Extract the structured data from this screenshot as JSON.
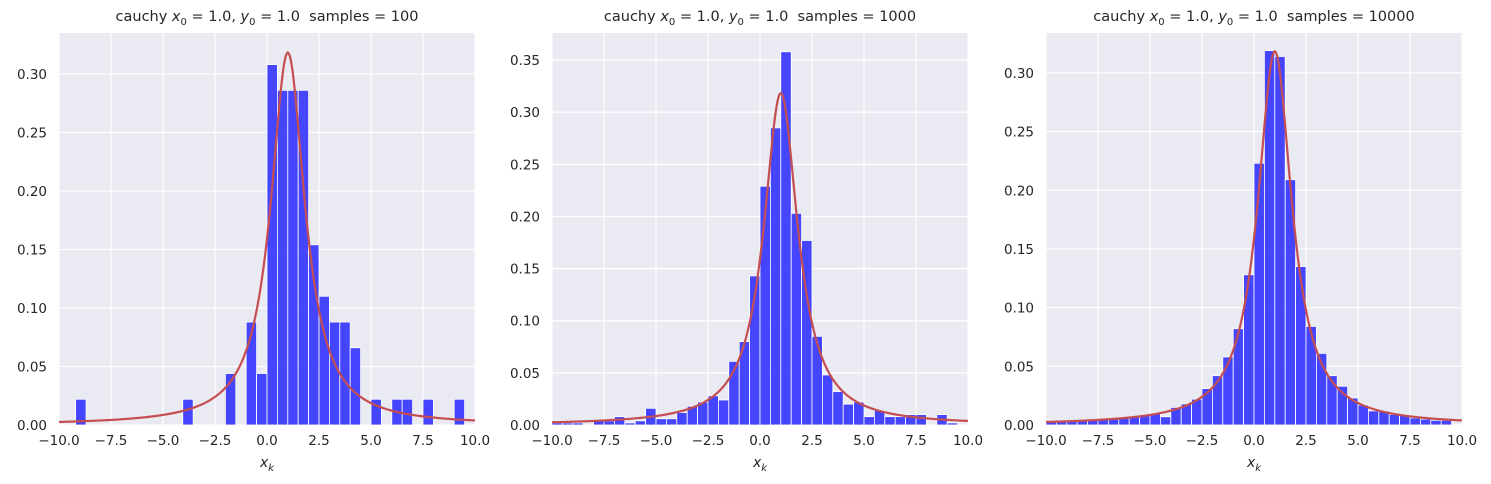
{
  "chart_data": [
    {
      "type": "bar",
      "title": "cauchy x₀ = 1.0, y₀ = 1.0  samples = 100",
      "xlabel": "xₖ",
      "xlim": [
        -10,
        10
      ],
      "ylim": [
        0,
        0.335
      ],
      "yticks": [
        0.0,
        0.05,
        0.1,
        0.15,
        0.2,
        0.25,
        0.3
      ],
      "ytick_labels": [
        "0.00",
        "0.05",
        "0.10",
        "0.15",
        "0.20",
        "0.25",
        "0.30"
      ],
      "xticks": [
        -10,
        -7.5,
        -5,
        -2.5,
        0,
        2.5,
        5,
        7.5,
        10
      ],
      "xtick_labels": [
        "−10.0",
        "−7.5",
        "−5.0",
        "−2.5",
        "0.0",
        "2.5",
        "5.0",
        "7.5",
        "10.0"
      ],
      "bin_width": 0.5,
      "bars": [
        {
          "x": -8.95,
          "y": 0.022
        },
        {
          "x": -3.8,
          "y": 0.022
        },
        {
          "x": -1.75,
          "y": 0.044
        },
        {
          "x": -0.75,
          "y": 0.088
        },
        {
          "x": -0.25,
          "y": 0.044
        },
        {
          "x": 0.25,
          "y": 0.308
        },
        {
          "x": 0.75,
          "y": 0.286
        },
        {
          "x": 1.25,
          "y": 0.286
        },
        {
          "x": 1.75,
          "y": 0.286
        },
        {
          "x": 2.25,
          "y": 0.154
        },
        {
          "x": 2.75,
          "y": 0.11
        },
        {
          "x": 3.25,
          "y": 0.088
        },
        {
          "x": 3.75,
          "y": 0.088
        },
        {
          "x": 4.25,
          "y": 0.066
        },
        {
          "x": 5.25,
          "y": 0.022
        },
        {
          "x": 6.25,
          "y": 0.022
        },
        {
          "x": 6.75,
          "y": 0.022
        },
        {
          "x": 7.75,
          "y": 0.022
        },
        {
          "x": 9.25,
          "y": 0.022
        }
      ],
      "curve": {
        "type": "cauchy_pdf",
        "x0": 1.0,
        "gamma": 1.0
      }
    },
    {
      "type": "bar",
      "title": "cauchy x₀ = 1.0, y₀ = 1.0  samples = 1000",
      "xlabel": "xₖ",
      "xlim": [
        -10,
        10
      ],
      "ylim": [
        0,
        0.376
      ],
      "yticks": [
        0.0,
        0.05,
        0.1,
        0.15,
        0.2,
        0.25,
        0.3,
        0.35
      ],
      "ytick_labels": [
        "0.00",
        "0.05",
        "0.10",
        "0.15",
        "0.20",
        "0.25",
        "0.30",
        "0.35"
      ],
      "xticks": [
        -10,
        -7.5,
        -5,
        -2.5,
        0,
        2.5,
        5,
        7.5,
        10
      ],
      "xtick_labels": [
        "−10.0",
        "−7.5",
        "−5.0",
        "−2.5",
        "0.0",
        "2.5",
        "5.0",
        "7.5",
        "10.0"
      ],
      "bin_width": 0.5,
      "bars": [
        {
          "x": -9.75,
          "y": 0.002
        },
        {
          "x": -9.25,
          "y": 0.002
        },
        {
          "x": -8.75,
          "y": 0.002
        },
        {
          "x": -7.75,
          "y": 0.004
        },
        {
          "x": -7.25,
          "y": 0.004
        },
        {
          "x": -6.75,
          "y": 0.008
        },
        {
          "x": -6.25,
          "y": 0.002
        },
        {
          "x": -5.75,
          "y": 0.004
        },
        {
          "x": -5.25,
          "y": 0.016
        },
        {
          "x": -4.75,
          "y": 0.006
        },
        {
          "x": -4.25,
          "y": 0.006
        },
        {
          "x": -3.75,
          "y": 0.012
        },
        {
          "x": -3.25,
          "y": 0.018
        },
        {
          "x": -2.75,
          "y": 0.022
        },
        {
          "x": -2.25,
          "y": 0.028
        },
        {
          "x": -1.75,
          "y": 0.024
        },
        {
          "x": -1.25,
          "y": 0.061
        },
        {
          "x": -0.75,
          "y": 0.08
        },
        {
          "x": -0.25,
          "y": 0.143
        },
        {
          "x": 0.25,
          "y": 0.229
        },
        {
          "x": 0.75,
          "y": 0.285
        },
        {
          "x": 1.25,
          "y": 0.358
        },
        {
          "x": 1.75,
          "y": 0.203
        },
        {
          "x": 2.25,
          "y": 0.177
        },
        {
          "x": 2.75,
          "y": 0.085
        },
        {
          "x": 3.25,
          "y": 0.048
        },
        {
          "x": 3.75,
          "y": 0.032
        },
        {
          "x": 4.25,
          "y": 0.02
        },
        {
          "x": 4.75,
          "y": 0.022
        },
        {
          "x": 5.25,
          "y": 0.008
        },
        {
          "x": 5.75,
          "y": 0.014
        },
        {
          "x": 6.25,
          "y": 0.008
        },
        {
          "x": 6.75,
          "y": 0.008
        },
        {
          "x": 7.25,
          "y": 0.01
        },
        {
          "x": 7.75,
          "y": 0.01
        },
        {
          "x": 8.75,
          "y": 0.01
        },
        {
          "x": 9.25,
          "y": 0.002
        }
      ],
      "curve": {
        "type": "cauchy_pdf",
        "x0": 1.0,
        "gamma": 1.0
      }
    },
    {
      "type": "bar",
      "title": "cauchy x₀ = 1.0, y₀ = 1.0  samples = 10000",
      "xlabel": "xₖ",
      "xlim": [
        -10,
        10
      ],
      "ylim": [
        0,
        0.334
      ],
      "yticks": [
        0.0,
        0.05,
        0.1,
        0.15,
        0.2,
        0.25,
        0.3
      ],
      "ytick_labels": [
        "0.00",
        "0.05",
        "0.10",
        "0.15",
        "0.20",
        "0.25",
        "0.30"
      ],
      "xticks": [
        -10,
        -7.5,
        -5,
        -2.5,
        0,
        2.5,
        5,
        7.5,
        10
      ],
      "xtick_labels": [
        "−10.0",
        "−7.5",
        "−5.0",
        "−2.5",
        "0.0",
        "2.5",
        "5.0",
        "7.5",
        "10.0"
      ],
      "bin_width": 0.5,
      "bars": [
        {
          "x": -9.75,
          "y": 0.003
        },
        {
          "x": -9.25,
          "y": 0.003
        },
        {
          "x": -8.75,
          "y": 0.004
        },
        {
          "x": -8.25,
          "y": 0.004
        },
        {
          "x": -7.75,
          "y": 0.004
        },
        {
          "x": -7.25,
          "y": 0.005
        },
        {
          "x": -6.75,
          "y": 0.005
        },
        {
          "x": -6.25,
          "y": 0.006
        },
        {
          "x": -5.75,
          "y": 0.007
        },
        {
          "x": -5.25,
          "y": 0.008
        },
        {
          "x": -4.75,
          "y": 0.01
        },
        {
          "x": -4.25,
          "y": 0.007
        },
        {
          "x": -3.75,
          "y": 0.015
        },
        {
          "x": -3.25,
          "y": 0.018
        },
        {
          "x": -2.75,
          "y": 0.022
        },
        {
          "x": -2.25,
          "y": 0.031
        },
        {
          "x": -1.75,
          "y": 0.042
        },
        {
          "x": -1.25,
          "y": 0.058
        },
        {
          "x": -0.75,
          "y": 0.082
        },
        {
          "x": -0.25,
          "y": 0.128
        },
        {
          "x": 0.25,
          "y": 0.223
        },
        {
          "x": 0.75,
          "y": 0.319
        },
        {
          "x": 1.25,
          "y": 0.314
        },
        {
          "x": 1.75,
          "y": 0.209
        },
        {
          "x": 2.25,
          "y": 0.135
        },
        {
          "x": 2.75,
          "y": 0.084
        },
        {
          "x": 3.25,
          "y": 0.061
        },
        {
          "x": 3.75,
          "y": 0.042
        },
        {
          "x": 4.25,
          "y": 0.033
        },
        {
          "x": 4.75,
          "y": 0.023
        },
        {
          "x": 5.25,
          "y": 0.017
        },
        {
          "x": 5.75,
          "y": 0.012
        },
        {
          "x": 6.25,
          "y": 0.012
        },
        {
          "x": 6.75,
          "y": 0.009
        },
        {
          "x": 7.25,
          "y": 0.008
        },
        {
          "x": 7.75,
          "y": 0.006
        },
        {
          "x": 8.25,
          "y": 0.005
        },
        {
          "x": 8.75,
          "y": 0.004
        },
        {
          "x": 9.25,
          "y": 0.004
        }
      ],
      "curve": {
        "type": "cauchy_pdf",
        "x0": 1.0,
        "gamma": 1.0
      }
    }
  ],
  "colors": {
    "plot_background": "#eaeaf2",
    "grid": "#ffffff",
    "bar_fill": "#3333ff",
    "bar_edge": "#ffffff",
    "curve": "#c44e52"
  }
}
